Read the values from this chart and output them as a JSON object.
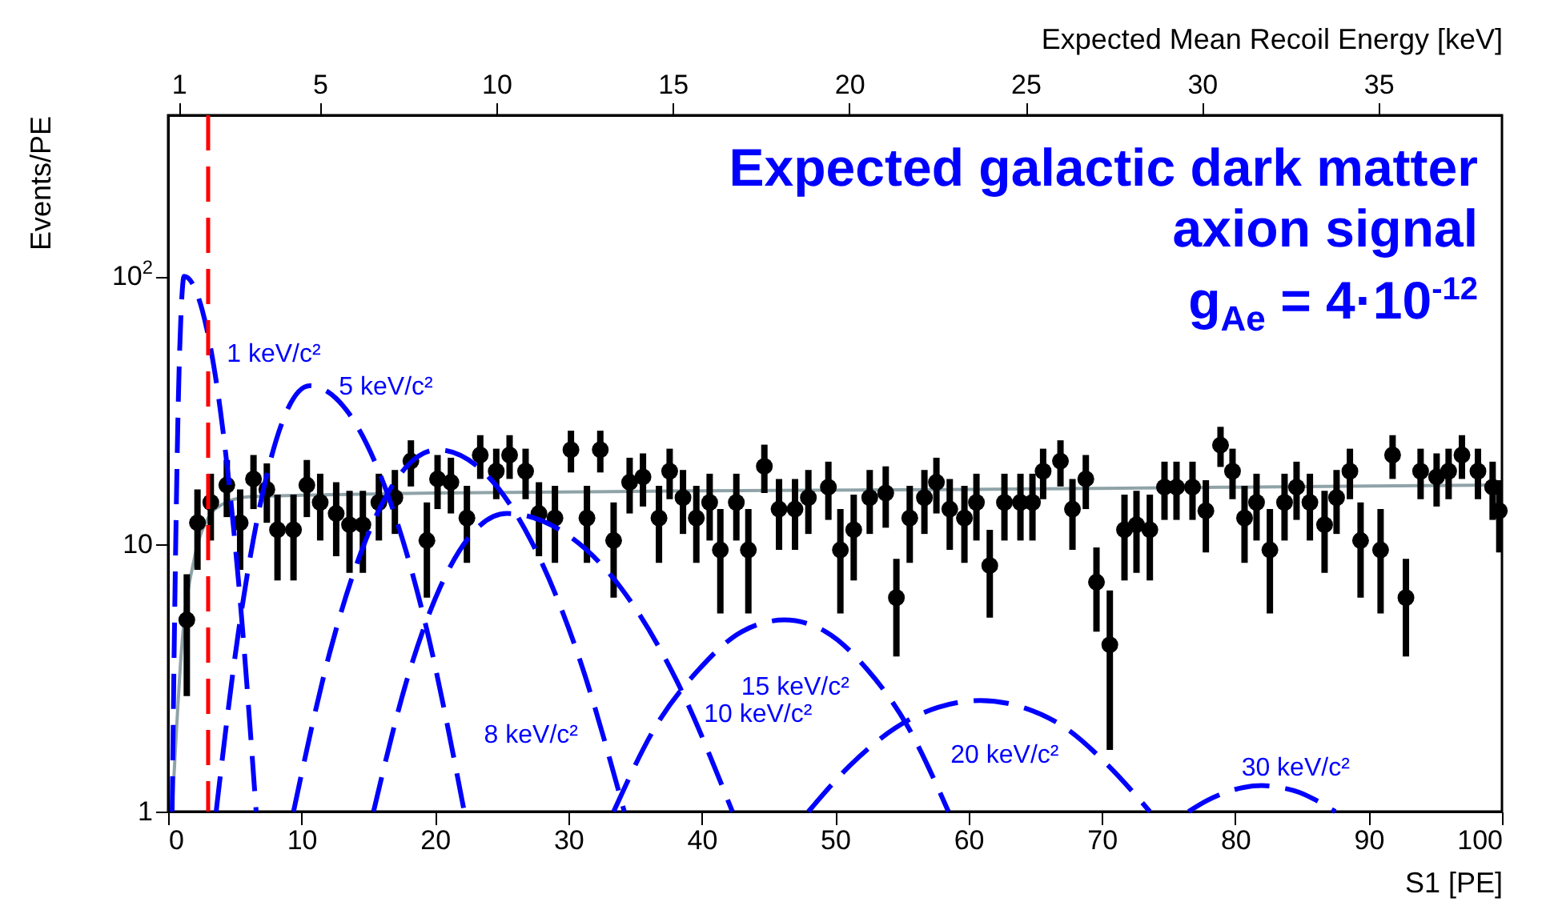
{
  "chart_data": {
    "type": "scatter",
    "xlabel": "S1 [PE]",
    "ylabel": "Events/PE",
    "x2label": "Expected Mean Recoil Energy [keV]",
    "annotations": [
      "Expected galactic dark matter axion signal",
      "g$_{Ae}$ = 4·10$^{-12}$"
    ],
    "xlim": [
      0,
      100
    ],
    "xticks": [
      0,
      10,
      20,
      30,
      40,
      50,
      60,
      70,
      80,
      90,
      100
    ],
    "x2lim": [
      0.7,
      38.5
    ],
    "x2ticks": [
      1,
      5,
      10,
      15,
      20,
      25,
      30,
      35
    ],
    "ylim": [
      1,
      400
    ],
    "yticks": [
      1,
      10,
      {
        "value": 100,
        "label": "10$^{2}$"
      }
    ],
    "log": "y",
    "grid": false,
    "ref_lines": [
      {
        "axis": "x",
        "value": 3,
        "color": "#ff0000",
        "line_style": "dashed"
      }
    ],
    "series": [
      {
        "type": "line",
        "color": "#8fa3a8",
        "line_style": "solid",
        "x": [
          0.3,
          1,
          2,
          3,
          4,
          6,
          10,
          20,
          40,
          60,
          80,
          100
        ],
        "values": [
          1,
          4,
          9,
          12.5,
          14,
          15,
          15.2,
          15.5,
          15.8,
          16,
          16.3,
          16.6
        ]
      },
      {
        "color": "#000000",
        "marker": "circle",
        "x": [
          1.4,
          2.2,
          3.2,
          4.4,
          5.4,
          6.4,
          7.4,
          8.2,
          9.4,
          10.4,
          11.4,
          12.6,
          13.6,
          14.6,
          15.8,
          17,
          18.2,
          19.4,
          20.2,
          21.2,
          22.4,
          23.4,
          24.6,
          25.6,
          26.8,
          27.8,
          29,
          30.2,
          31.4,
          32.4,
          33.4,
          34.6,
          35.6,
          36.8,
          37.6,
          38.6,
          39.6,
          40.6,
          41.4,
          42.6,
          43.5,
          44.7,
          45.8,
          47,
          48,
          49.5,
          50.4,
          51.4,
          52.6,
          53.8,
          54.6,
          55.6,
          56.7,
          57.6,
          58.6,
          59.7,
          60.6,
          61.6,
          62.7,
          63.9,
          64.8,
          65.6,
          66.9,
          67.8,
          68.8,
          69.6,
          70.6,
          71.7,
          72.6,
          73.6,
          74.7,
          75.6,
          76.8,
          77.8,
          78.9,
          79.8,
          80.7,
          81.6,
          82.6,
          83.7,
          84.6,
          85.6,
          86.7,
          87.6,
          88.6,
          89.4,
          90.9,
          91.8,
          92.8,
          93.9,
          95.1,
          96,
          97,
          98.2,
          99.3,
          99.8
        ],
        "values": [
          5.2,
          12,
          14.3,
          16.6,
          12,
          17.5,
          16,
          11.3,
          11.3,
          16.6,
          14.3,
          13,
          11.8,
          11.8,
          14.3,
          14.9,
          20.4,
          10.3,
          17.5,
          17,
          12.5,
          21.5,
          18.7,
          21.5,
          18.7,
          13,
          12.5,
          22.5,
          12.5,
          22.5,
          10.3,
          17,
          17.8,
          12.5,
          18.7,
          14.9,
          12.5,
          14.3,
          9.5,
          14.3,
          9.5,
          19.5,
          13.5,
          13.5,
          14.9,
          16.3,
          9.5,
          11.3,
          14.9,
          15.5,
          6.3,
          12.5,
          14.9,
          17,
          13.5,
          12.5,
          14.3,
          8.3,
          14.3,
          14.3,
          14.3,
          18.7,
          20.4,
          13.5,
          17.5,
          7.2,
          4.2,
          11.3,
          11.8,
          11.3,
          16.3,
          16.3,
          16.3,
          13.3,
          23.4,
          18.7,
          12.5,
          14.3,
          9.5,
          14.3,
          16.3,
          14.3,
          11.8,
          14.9,
          18.7,
          10.3,
          9.5,
          21.5,
          6.3,
          18.7,
          17.8,
          18.7,
          21.5,
          18.7,
          16.3,
          13.3
        ],
        "errors": [
          2.5,
          4,
          4,
          4,
          4,
          4,
          4,
          4,
          4,
          4,
          4,
          4,
          4,
          4,
          4,
          4,
          4,
          4,
          4,
          4,
          4,
          4,
          4,
          4,
          4,
          4,
          4,
          4,
          4,
          4,
          4,
          4,
          4,
          4,
          4,
          4,
          4,
          4,
          4,
          4,
          4,
          4,
          4,
          4,
          4,
          4,
          4,
          4,
          4,
          4,
          2.5,
          4,
          4,
          4,
          4,
          4,
          4,
          3,
          4,
          4,
          4,
          4,
          4,
          4,
          4,
          2.5,
          2.5,
          4,
          4,
          4,
          4,
          4,
          4,
          4,
          4,
          4,
          4,
          4,
          4,
          4,
          4,
          4,
          4,
          4,
          4,
          4,
          4,
          4,
          2.5,
          4,
          4,
          4,
          4,
          4,
          4,
          4
        ]
      },
      {
        "type": "line",
        "name": "1 keV/c²",
        "color": "#0000ff",
        "line_style": "dashed",
        "x": [
          0.3,
          0.53,
          0.75,
          0.98,
          1.2,
          2.55,
          3.9,
          5.25,
          6.6
        ],
        "values": [
          1,
          7.5,
          32,
          75,
          100,
          75,
          32,
          7.5,
          1
        ]
      },
      {
        "type": "line",
        "name": "5 keV/c²",
        "color": "#0000ff",
        "line_style": "dashed",
        "x": [
          3.6,
          5.35,
          7.1,
          8.85,
          10.6,
          13.5,
          16.4,
          19.3,
          22.2
        ],
        "values": [
          1,
          5,
          15.6,
          31,
          39,
          31,
          15.6,
          5,
          1
        ]
      },
      {
        "type": "line",
        "name": "8 keV/c²",
        "color": "#0000ff",
        "line_style": "dashed",
        "x": [
          9.4,
          12.1,
          14.8,
          17.5,
          20.2,
          23.7,
          27.2,
          30.7,
          34.2
        ],
        "values": [
          1,
          3.9,
          10.3,
          18.5,
          22.5,
          18.5,
          10.3,
          3.9,
          1
        ]
      },
      {
        "type": "line",
        "name": "10 keV/c²",
        "color": "#0000ff",
        "line_style": "dashed",
        "x": [
          15.4,
          17.9,
          20.4,
          22.9,
          25.4,
          29.6,
          33.9,
          38.1,
          42.3
        ],
        "values": [
          1,
          3.1,
          6.9,
          11.1,
          13,
          11.1,
          6.9,
          3.1,
          1
        ]
      },
      {
        "type": "line",
        "name": "15 keV/c²",
        "color": "#0000ff",
        "line_style": "dashed",
        "x": [
          33.4,
          36.6,
          39.8,
          43,
          46.2,
          49.3,
          52.4,
          55.4,
          58.5
        ],
        "values": [
          1,
          2.1,
          3.4,
          4.7,
          5.2,
          4.7,
          3.4,
          2.1,
          1
        ]
      },
      {
        "type": "line",
        "name": "20 keV/c²",
        "color": "#0000ff",
        "line_style": "dashed",
        "x": [
          48,
          51.2,
          54.5,
          57.7,
          60.9,
          64.1,
          67.3,
          70.4,
          73.6
        ],
        "values": [
          1,
          1.5,
          2.05,
          2.45,
          2.6,
          2.45,
          2.05,
          1.5,
          1
        ]
      },
      {
        "type": "line",
        "name": "30 keV/c²",
        "color": "#0000ff",
        "line_style": "dashed",
        "x": [
          76.5,
          77.9,
          79.3,
          80.6,
          82,
          83.4,
          84.8,
          86.1,
          87.5
        ],
        "values": [
          1,
          1.1,
          1.18,
          1.23,
          1.25,
          1.23,
          1.18,
          1.1,
          1
        ]
      }
    ]
  }
}
